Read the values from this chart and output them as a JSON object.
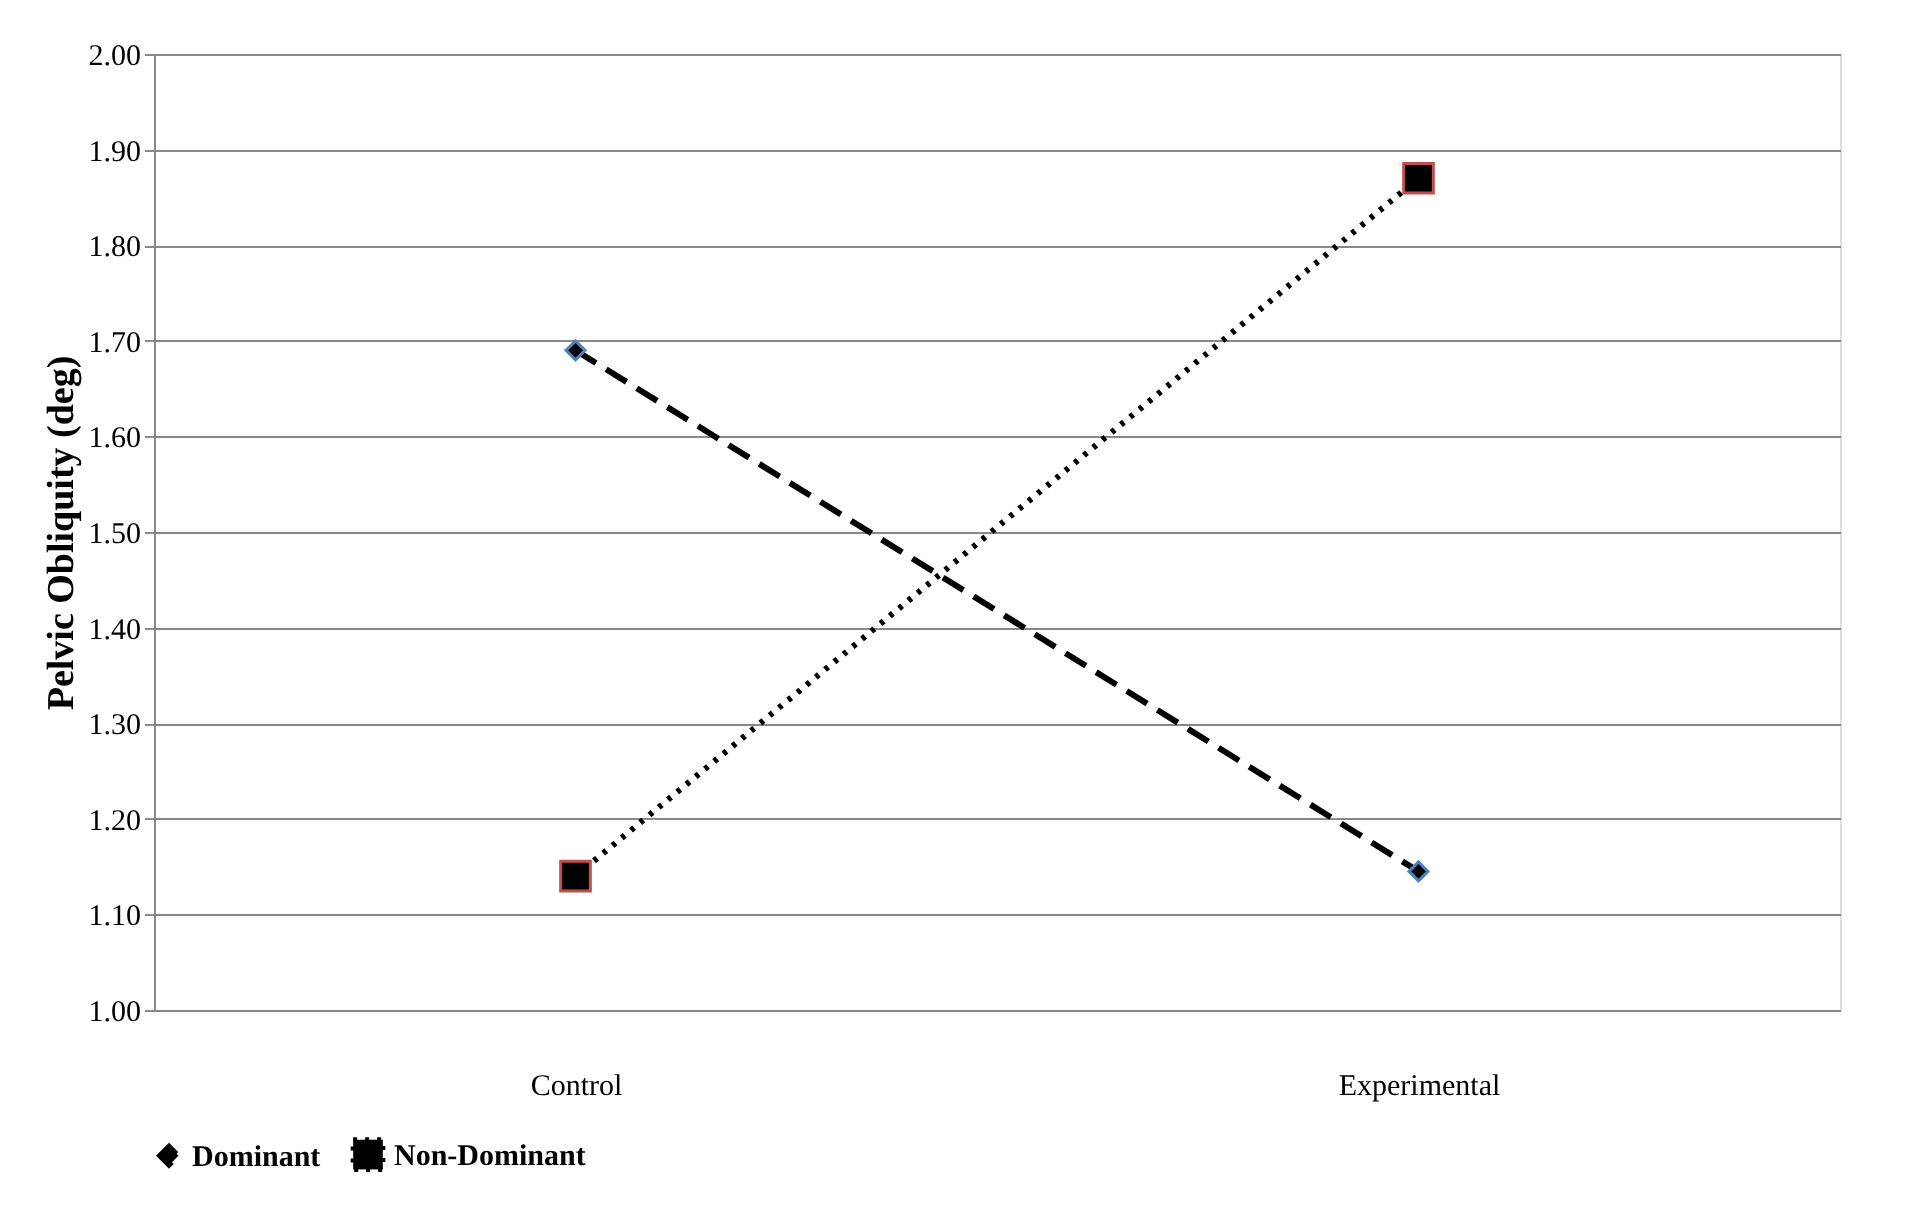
{
  "chart_data": {
    "type": "line",
    "ylabel": "Pelvic Obliquity (deg)",
    "categories": [
      "Control",
      "Experimental"
    ],
    "series": [
      {
        "name": "Dominant",
        "color": "#000000",
        "values": [
          1.69,
          1.145
        ],
        "marker": "diamond",
        "line_style": "dashed"
      },
      {
        "name": "Non-Dominant",
        "color": "#000000",
        "values": [
          1.14,
          1.87
        ],
        "marker": "square",
        "line_style": "dotted"
      }
    ],
    "ylim": [
      1.0,
      2.0
    ],
    "yticks": [
      {
        "value": 1.0,
        "label": "1.00"
      },
      {
        "value": 1.1,
        "label": "1.10"
      },
      {
        "value": 1.2,
        "label": "1.20"
      },
      {
        "value": 1.3,
        "label": "1.30"
      },
      {
        "value": 1.4,
        "label": "1.40"
      },
      {
        "value": 1.5,
        "label": "1.50"
      },
      {
        "value": 1.6,
        "label": "1.60"
      },
      {
        "value": 1.7,
        "label": "1.70"
      },
      {
        "value": 1.8,
        "label": "1.80"
      },
      {
        "value": 1.9,
        "label": "1.90"
      },
      {
        "value": 2.0,
        "label": "2.00"
      }
    ],
    "grid": "y",
    "legend": "bottom left"
  }
}
